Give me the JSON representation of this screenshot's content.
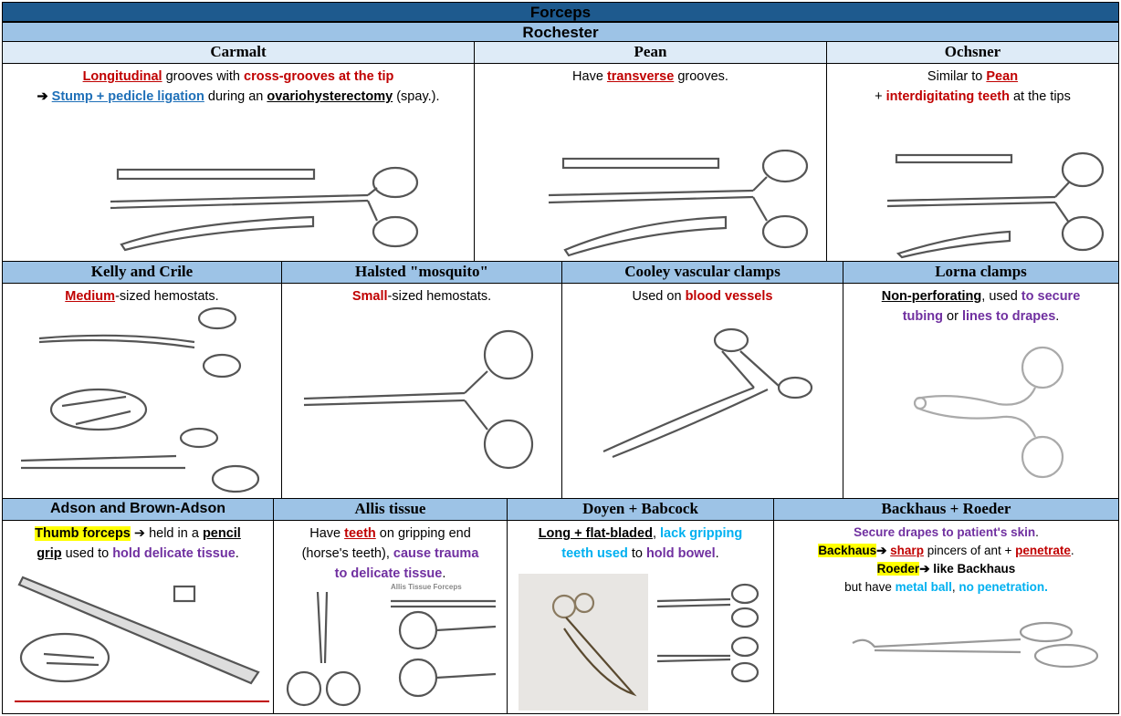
{
  "title": "Forceps",
  "subtitle": "Rochester",
  "carmalt": {
    "heading": "Carmalt",
    "p1": "Longitudinal",
    "p2": " grooves with ",
    "p3": "cross-grooves at the tip",
    "p4": "➔ ",
    "p5": "Stump + pedicle ligation",
    "p6": " during an ",
    "p7": "ovariohysterectomy",
    "p8": " (spay.)."
  },
  "pean": {
    "heading": "Pean",
    "p1": "Have ",
    "p2": "transverse",
    "p3": " grooves."
  },
  "ochsner": {
    "heading": "Ochsner",
    "p1": "Similar to ",
    "p2": "Pean",
    "p3": "+ ",
    "p4": "interdigitating teeth",
    "p5": " at the tips"
  },
  "kelly": {
    "heading": "Kelly and Crile",
    "p1": "Medium",
    "p2": "-sized hemostats."
  },
  "halsted": {
    "heading": "Halsted \"mosquito\"",
    "p1": "Small",
    "p2": "-sized hemostats."
  },
  "cooley": {
    "heading": "Cooley vascular clamps",
    "p1": "Used on ",
    "p2": "blood vessels"
  },
  "lorna": {
    "heading": "Lorna clamps",
    "p1": "Non-perforating",
    "p2": ", used ",
    "p3": "to secure",
    "p4": "tubing",
    "p5": " or ",
    "p6": "lines to drapes",
    "p7": "."
  },
  "adson": {
    "heading": "Adson and Brown-Adson",
    "p1": "Thumb forceps",
    "p2": " ➔ held in a ",
    "p3": "pencil",
    "p4": "grip",
    "p5": " used to ",
    "p6": "hold delicate tissue",
    "p7": "."
  },
  "allis": {
    "heading": "Allis tissue",
    "p1": "Have ",
    "p2": "teeth",
    "p3": " on gripping end",
    "p4": "(horse's teeth), ",
    "p5": "cause trauma",
    "p6": "to delicate tissue",
    "p7": ".",
    "img_label": "Allis Tissue Forceps"
  },
  "doyen": {
    "heading": "Doyen +  Babcock",
    "p1": "Long + flat-bladed",
    "p2": ", ",
    "p3": "lack gripping",
    "p4": "teeth used",
    "p5": " to ",
    "p6": "hold bowel",
    "p7": "."
  },
  "backhaus": {
    "heading": "Backhaus + Roeder",
    "p1": "Secure drapes to patient's skin",
    "p2": ".",
    "p3": "Backhaus",
    "p4": "➔ ",
    "p5": "sharp",
    "p6": " pincers of ant + ",
    "p7": "penetrate",
    "p8": ".",
    "p9": "Roeder",
    "p10": "➔  like Backhaus",
    "p11": "but have ",
    "p12": "metal ball",
    "p13": ", ",
    "p14": "no penetration."
  }
}
